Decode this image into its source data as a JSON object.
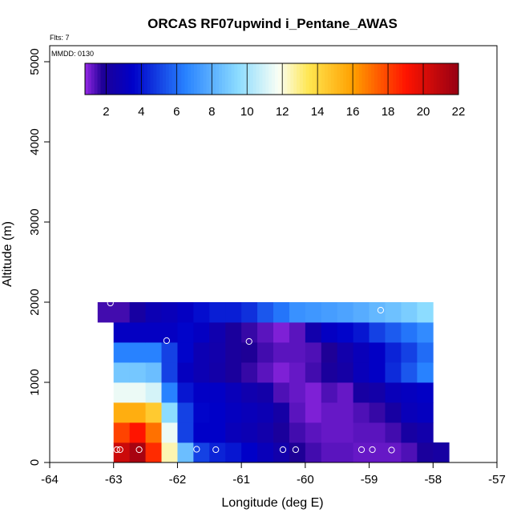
{
  "chart_data": {
    "type": "heatmap",
    "title": "ORCAS RF07upwind i_Pentane_AWAS",
    "annotations": {
      "flights": "Flts: 7",
      "date": "MMDD: 0130"
    },
    "xlabel": "Longitude (deg E)",
    "ylabel": "Altitude (m)",
    "xlim": [
      -64,
      -57
    ],
    "ylim": [
      0,
      5200
    ],
    "x_ticks": [
      -64,
      -63,
      -62,
      -61,
      -60,
      -59,
      -58,
      -57
    ],
    "y_ticks": [
      0,
      1000,
      2000,
      3000,
      4000,
      5000
    ],
    "colorbar": {
      "range": [
        0.8,
        22
      ],
      "ticks": [
        2,
        4,
        6,
        8,
        10,
        12,
        14,
        16,
        18,
        20,
        22
      ]
    },
    "cell_width_deg": 0.25,
    "cell_height_m": 250,
    "rows": [
      {
        "y0": 0,
        "x0": -63.0,
        "values": [
          20.5,
          21.5,
          18.5,
          12.5,
          8.5,
          5.0,
          4.3,
          4.0,
          3.5,
          3.0,
          2.5,
          1.8,
          1.5,
          1.3,
          1.3,
          1.2,
          1.2,
          1.2,
          1.4,
          2.0,
          2.2
        ]
      },
      {
        "y0": 250,
        "x0": -63.0,
        "values": [
          18.0,
          19.0,
          17.0,
          11.5,
          5.0,
          3.5,
          3.5,
          3.0,
          2.8,
          2.5,
          2.0,
          1.5,
          1.3,
          1.2,
          1.2,
          1.3,
          1.3,
          1.5,
          2.2,
          2.5
        ]
      },
      {
        "y0": 500,
        "x0": -63.0,
        "values": [
          15.5,
          15.5,
          14.5,
          9.5,
          5.0,
          3.6,
          3.5,
          3.2,
          3.0,
          2.8,
          2.3,
          1.3,
          1.0,
          1.2,
          1.2,
          1.4,
          1.6,
          2.2,
          3.0,
          3.2
        ]
      },
      {
        "y0": 750,
        "x0": -63.0,
        "values": [
          11.5,
          11.5,
          11.0,
          6.5,
          4.0,
          3.4,
          3.4,
          3.0,
          2.6,
          2.4,
          1.4,
          1.2,
          1.0,
          1.4,
          1.2,
          2.2,
          2.4,
          3.0,
          3.2,
          3.4
        ]
      },
      {
        "y0": 1000,
        "x0": -63.0,
        "values": [
          8.8,
          8.8,
          8.5,
          5.0,
          3.2,
          2.8,
          2.4,
          2.0,
          1.6,
          1.3,
          1.0,
          1.2,
          1.5,
          2.0,
          2.3,
          3.0,
          3.4,
          4.5,
          5.5,
          6.5
        ]
      },
      {
        "y0": 1250,
        "x0": -63.0,
        "values": [
          6.5,
          6.5,
          6.5,
          5.0,
          3.6,
          2.8,
          2.5,
          2.0,
          1.8,
          1.5,
          1.3,
          1.3,
          1.4,
          1.8,
          2.5,
          3.0,
          3.4,
          4.3,
          5.0,
          6.0
        ]
      },
      {
        "y0": 1500,
        "x0": -63.0,
        "values": [
          3.3,
          3.3,
          3.3,
          3.3,
          3.6,
          3.3,
          2.6,
          2.0,
          1.6,
          1.3,
          1.0,
          1.3,
          2.5,
          3.3,
          3.6,
          4.0,
          5.0,
          5.6,
          6.2,
          6.8
        ]
      },
      {
        "y0": 1750,
        "x0": -63.25,
        "values": [
          1.5,
          1.5,
          2.2,
          2.8,
          3.0,
          3.3,
          3.8,
          4.2,
          4.2,
          4.6,
          5.5,
          6.2,
          7.0,
          7.2,
          7.4,
          7.6,
          7.9,
          8.3,
          8.6,
          9.0,
          9.5
        ]
      }
    ],
    "sample_points": [
      {
        "x": -63.05,
        "y": 1990
      },
      {
        "x": -62.17,
        "y": 1520
      },
      {
        "x": -60.88,
        "y": 1510
      },
      {
        "x": -58.82,
        "y": 1900
      },
      {
        "x": -62.95,
        "y": 160
      },
      {
        "x": -62.9,
        "y": 160
      },
      {
        "x": -62.6,
        "y": 160
      },
      {
        "x": -61.7,
        "y": 165
      },
      {
        "x": -61.4,
        "y": 160
      },
      {
        "x": -60.35,
        "y": 160
      },
      {
        "x": -60.15,
        "y": 160
      },
      {
        "x": -59.12,
        "y": 160
      },
      {
        "x": -58.95,
        "y": 160
      },
      {
        "x": -58.65,
        "y": 155
      }
    ]
  }
}
